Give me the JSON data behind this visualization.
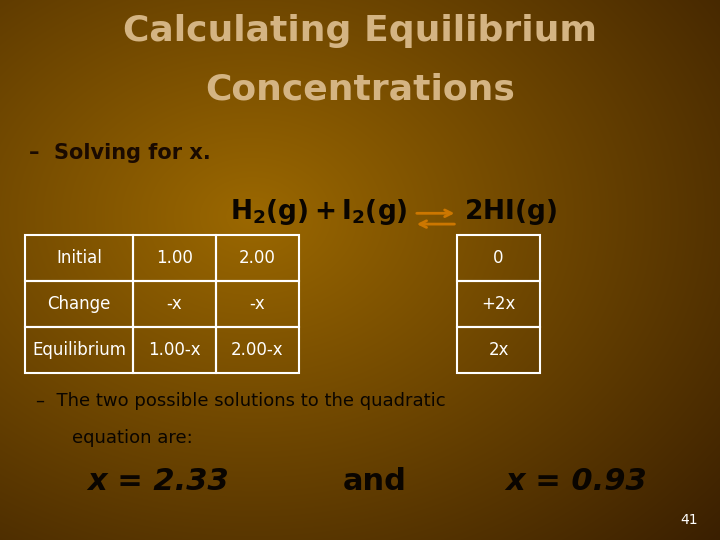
{
  "title_line1": "Calculating Equilibrium",
  "title_line2": "Concentrations",
  "subtitle": "Solving for x.",
  "bg_color_top": "#9B6800",
  "bg_color_mid": "#7A4E00",
  "bg_color_bottom": "#4A2D00",
  "title_color": "#D4B483",
  "subtitle_color": "#1A0A00",
  "table_left_headers": [
    "Initial",
    "Change",
    "Equilibrium"
  ],
  "table_left_col1": [
    "1.00",
    "-x",
    "1.00-x"
  ],
  "table_left_col2": [
    "2.00",
    "-x",
    "2.00-x"
  ],
  "table_right_col": [
    "0",
    "+2x",
    "2x"
  ],
  "bullet_text1": "The two possible solutions to the quadratic",
  "bullet_text2": "equation are:",
  "sol1": "x = 2.33",
  "sol2": "and",
  "sol3": "x = 0.93",
  "page_num": "41",
  "text_color": "#FFFFFF",
  "dark_text_color": "#0A0500",
  "table_border_color": "#FFFFFF",
  "table_text_color": "#FFFFFF",
  "eq_text_color": "#0A0500",
  "bullet_color": "#0A0500",
  "sol_color": "#0A0500",
  "arrow_color": "#CC7700"
}
